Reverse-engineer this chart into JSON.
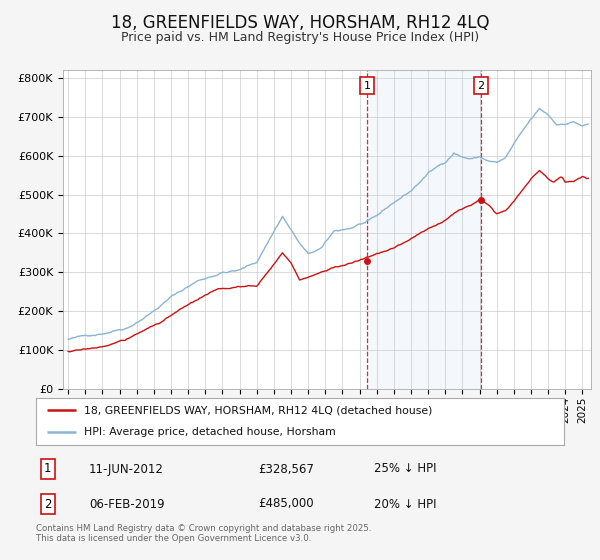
{
  "title": "18, GREENFIELDS WAY, HORSHAM, RH12 4LQ",
  "subtitle": "Price paid vs. HM Land Registry's House Price Index (HPI)",
  "ylabel_ticks": [
    "£0",
    "£100K",
    "£200K",
    "£300K",
    "£400K",
    "£500K",
    "£600K",
    "£700K",
    "£800K"
  ],
  "ytick_vals": [
    0,
    100000,
    200000,
    300000,
    400000,
    500000,
    600000,
    700000,
    800000
  ],
  "ylim": [
    0,
    820000
  ],
  "xlim_start": 1994.7,
  "xlim_end": 2025.5,
  "hpi_color": "#8ab4d4",
  "price_color": "#cc1111",
  "marker1_date": 2012.44,
  "marker1_price": 328567,
  "marker2_date": 2019.09,
  "marker2_price": 485000,
  "vline1_label": "1",
  "vline2_label": "2",
  "legend_line1": "18, GREENFIELDS WAY, HORSHAM, RH12 4LQ (detached house)",
  "legend_line2": "HPI: Average price, detached house, Horsham",
  "table_row1_num": "1",
  "table_row1_date": "11-JUN-2012",
  "table_row1_price": "£328,567",
  "table_row1_hpi": "25% ↓ HPI",
  "table_row2_num": "2",
  "table_row2_date": "06-FEB-2019",
  "table_row2_price": "£485,000",
  "table_row2_hpi": "20% ↓ HPI",
  "footnote": "Contains HM Land Registry data © Crown copyright and database right 2025.\nThis data is licensed under the Open Government Licence v3.0.",
  "background_color": "#f5f5f5",
  "plot_bg_color": "#ffffff",
  "grid_color": "#cccccc",
  "title_fontsize": 12,
  "subtitle_fontsize": 9
}
